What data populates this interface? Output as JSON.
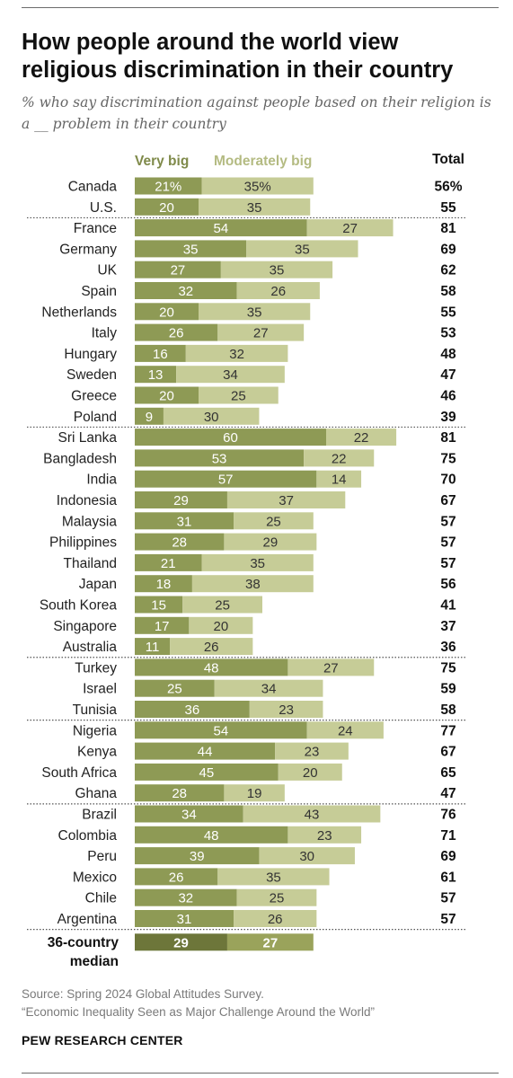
{
  "title": "How people around the world view religious discrimination in their country",
  "subtitle": "% who say discrimination against people based on their religion is a __ problem in their country",
  "source_line1": "Source: Spring 2024 Global Attitudes Survey.",
  "source_line2": "“Economic Inequality Seen as Major Challenge Around the World”",
  "organization": "PEW RESEARCH CENTER",
  "colors": {
    "very_big": "#8e9a55",
    "moderately_big": "#c6cc97",
    "median_very_big": "#6d763a",
    "median_moderately_big": "#9aa35b",
    "very_big_text": "#7f8a4a",
    "moderately_big_text": "#b4bb82"
  },
  "chart_data": {
    "type": "bar",
    "orientation": "horizontal",
    "stacked": true,
    "legend_position": "top",
    "total_header": "Total",
    "series": [
      {
        "name": "Very big",
        "values": [
          21,
          20,
          54,
          35,
          27,
          32,
          20,
          26,
          16,
          13,
          20,
          9,
          60,
          53,
          57,
          29,
          31,
          28,
          21,
          18,
          15,
          17,
          11,
          48,
          25,
          36,
          54,
          44,
          45,
          28,
          34,
          48,
          39,
          26,
          32,
          31,
          29
        ]
      },
      {
        "name": "Moderately big",
        "values": [
          35,
          35,
          27,
          35,
          35,
          26,
          35,
          27,
          32,
          34,
          25,
          30,
          22,
          22,
          14,
          37,
          25,
          29,
          35,
          38,
          25,
          20,
          26,
          27,
          34,
          23,
          24,
          23,
          20,
          19,
          43,
          23,
          30,
          35,
          25,
          26,
          27
        ]
      }
    ],
    "categories": [
      "Canada",
      "U.S.",
      "France",
      "Germany",
      "UK",
      "Spain",
      "Netherlands",
      "Italy",
      "Hungary",
      "Sweden",
      "Greece",
      "Poland",
      "Sri Lanka",
      "Bangladesh",
      "India",
      "Indonesia",
      "Malaysia",
      "Philippines",
      "Thailand",
      "Japan",
      "South Korea",
      "Singapore",
      "Australia",
      "Turkey",
      "Israel",
      "Tunisia",
      "Nigeria",
      "Kenya",
      "South Africa",
      "Ghana",
      "Brazil",
      "Colombia",
      "Peru",
      "Mexico",
      "Chile",
      "Argentina",
      "36-country median"
    ],
    "totals": [
      56,
      55,
      81,
      69,
      62,
      58,
      55,
      53,
      48,
      47,
      46,
      39,
      81,
      75,
      70,
      67,
      57,
      57,
      57,
      56,
      41,
      37,
      36,
      75,
      59,
      58,
      77,
      67,
      65,
      47,
      76,
      71,
      69,
      61,
      57,
      57,
      null
    ],
    "value_labels_first_row": {
      "very_big": "21%",
      "moderately_big": "35%",
      "total": "56%"
    },
    "median_label_lines": [
      "36-country",
      "median"
    ],
    "region_breaks_after": [
      "U.S.",
      "Poland",
      "Australia",
      "Tunisia",
      "Ghana",
      "Argentina"
    ]
  }
}
